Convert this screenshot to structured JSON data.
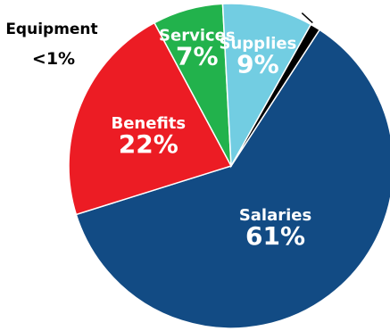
{
  "chart_data": {
    "type": "pie",
    "title": "",
    "slices": [
      {
        "label": "Salaries",
        "value_label": "61%",
        "value": 61,
        "color": "#124b84"
      },
      {
        "label": "Benefits",
        "value_label": "22%",
        "value": 22,
        "color": "#ec1c24"
      },
      {
        "label": "Services",
        "value_label": "7%",
        "value": 7,
        "color": "#22b24c"
      },
      {
        "label": "Supplies",
        "value_label": "9%",
        "value": 9,
        "color": "#72cde2"
      },
      {
        "label": "Equipment",
        "value_label": "<1%",
        "value": 1,
        "color": "#000000"
      }
    ],
    "start_angle_deg": -57,
    "legend": "none",
    "outline_color": "#ffffff"
  }
}
